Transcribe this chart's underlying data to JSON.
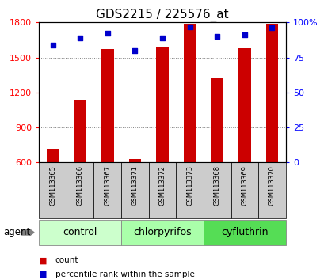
{
  "title": "GDS2215 / 225576_at",
  "samples": [
    "GSM113365",
    "GSM113366",
    "GSM113367",
    "GSM113371",
    "GSM113372",
    "GSM113373",
    "GSM113368",
    "GSM113369",
    "GSM113370"
  ],
  "counts": [
    710,
    1130,
    1570,
    630,
    1590,
    1790,
    1320,
    1580,
    1790
  ],
  "percentile_ranks": [
    84,
    89,
    92,
    80,
    89,
    97,
    90,
    91,
    96
  ],
  "ymin": 600,
  "ymax": 1800,
  "yticks": [
    600,
    900,
    1200,
    1500,
    1800
  ],
  "percentile_max": 100,
  "percentile_yticks": [
    0,
    25,
    50,
    75,
    100
  ],
  "percentile_yticklabels": [
    "0",
    "25",
    "50",
    "75",
    "100%"
  ],
  "groups": [
    {
      "name": "control",
      "indices": [
        0,
        1,
        2
      ],
      "color": "#ccffcc"
    },
    {
      "name": "chlorpyrifos",
      "indices": [
        3,
        4,
        5
      ],
      "color": "#aaffaa"
    },
    {
      "name": "cyfluthrin",
      "indices": [
        6,
        7,
        8
      ],
      "color": "#55dd55"
    }
  ],
  "bar_color": "#cc0000",
  "dot_color": "#0000cc",
  "bar_width": 0.45,
  "x_bg_color": "#cccccc",
  "agent_label": "agent",
  "legend_count_label": "count",
  "legend_pct_label": "percentile rank within the sample",
  "title_fontsize": 11,
  "tick_fontsize": 8,
  "sample_fontsize": 6,
  "group_label_fontsize": 9
}
